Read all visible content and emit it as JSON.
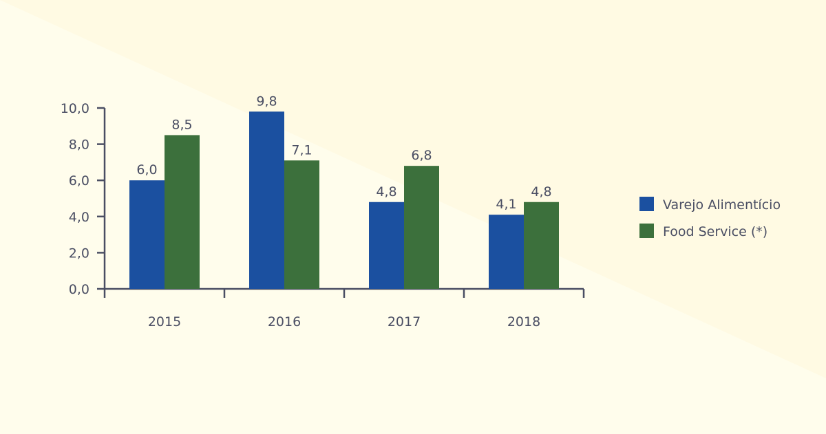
{
  "chart_data": {
    "type": "bar",
    "categories": [
      "2015",
      "2016",
      "2017",
      "2018"
    ],
    "series": [
      {
        "name": "Varejo Alimentício",
        "values": [
          6.0,
          9.8,
          4.8,
          4.1
        ],
        "labels": [
          "6,0",
          "9,8",
          "4,8",
          "4,1"
        ],
        "color": "#1b50a0"
      },
      {
        "name": "Food Service (*)",
        "values": [
          8.5,
          7.1,
          6.8,
          4.8
        ],
        "labels": [
          "8,5",
          "7,1",
          "6,8",
          "4,8"
        ],
        "color": "#3c703c"
      }
    ],
    "yticks": [
      "0,0",
      "2,0",
      "4,0",
      "6,0",
      "8,0",
      "10,0"
    ],
    "ytick_values": [
      0,
      2,
      4,
      6,
      8,
      10
    ],
    "ylim": [
      0,
      10
    ],
    "title": "",
    "xlabel": "",
    "ylabel": "",
    "grid": false,
    "legend": "right"
  },
  "colors": {
    "background": "#fffdec",
    "background_wedge": "#fffae3",
    "axis": "#4a4e63",
    "text": "#4a4e63"
  }
}
